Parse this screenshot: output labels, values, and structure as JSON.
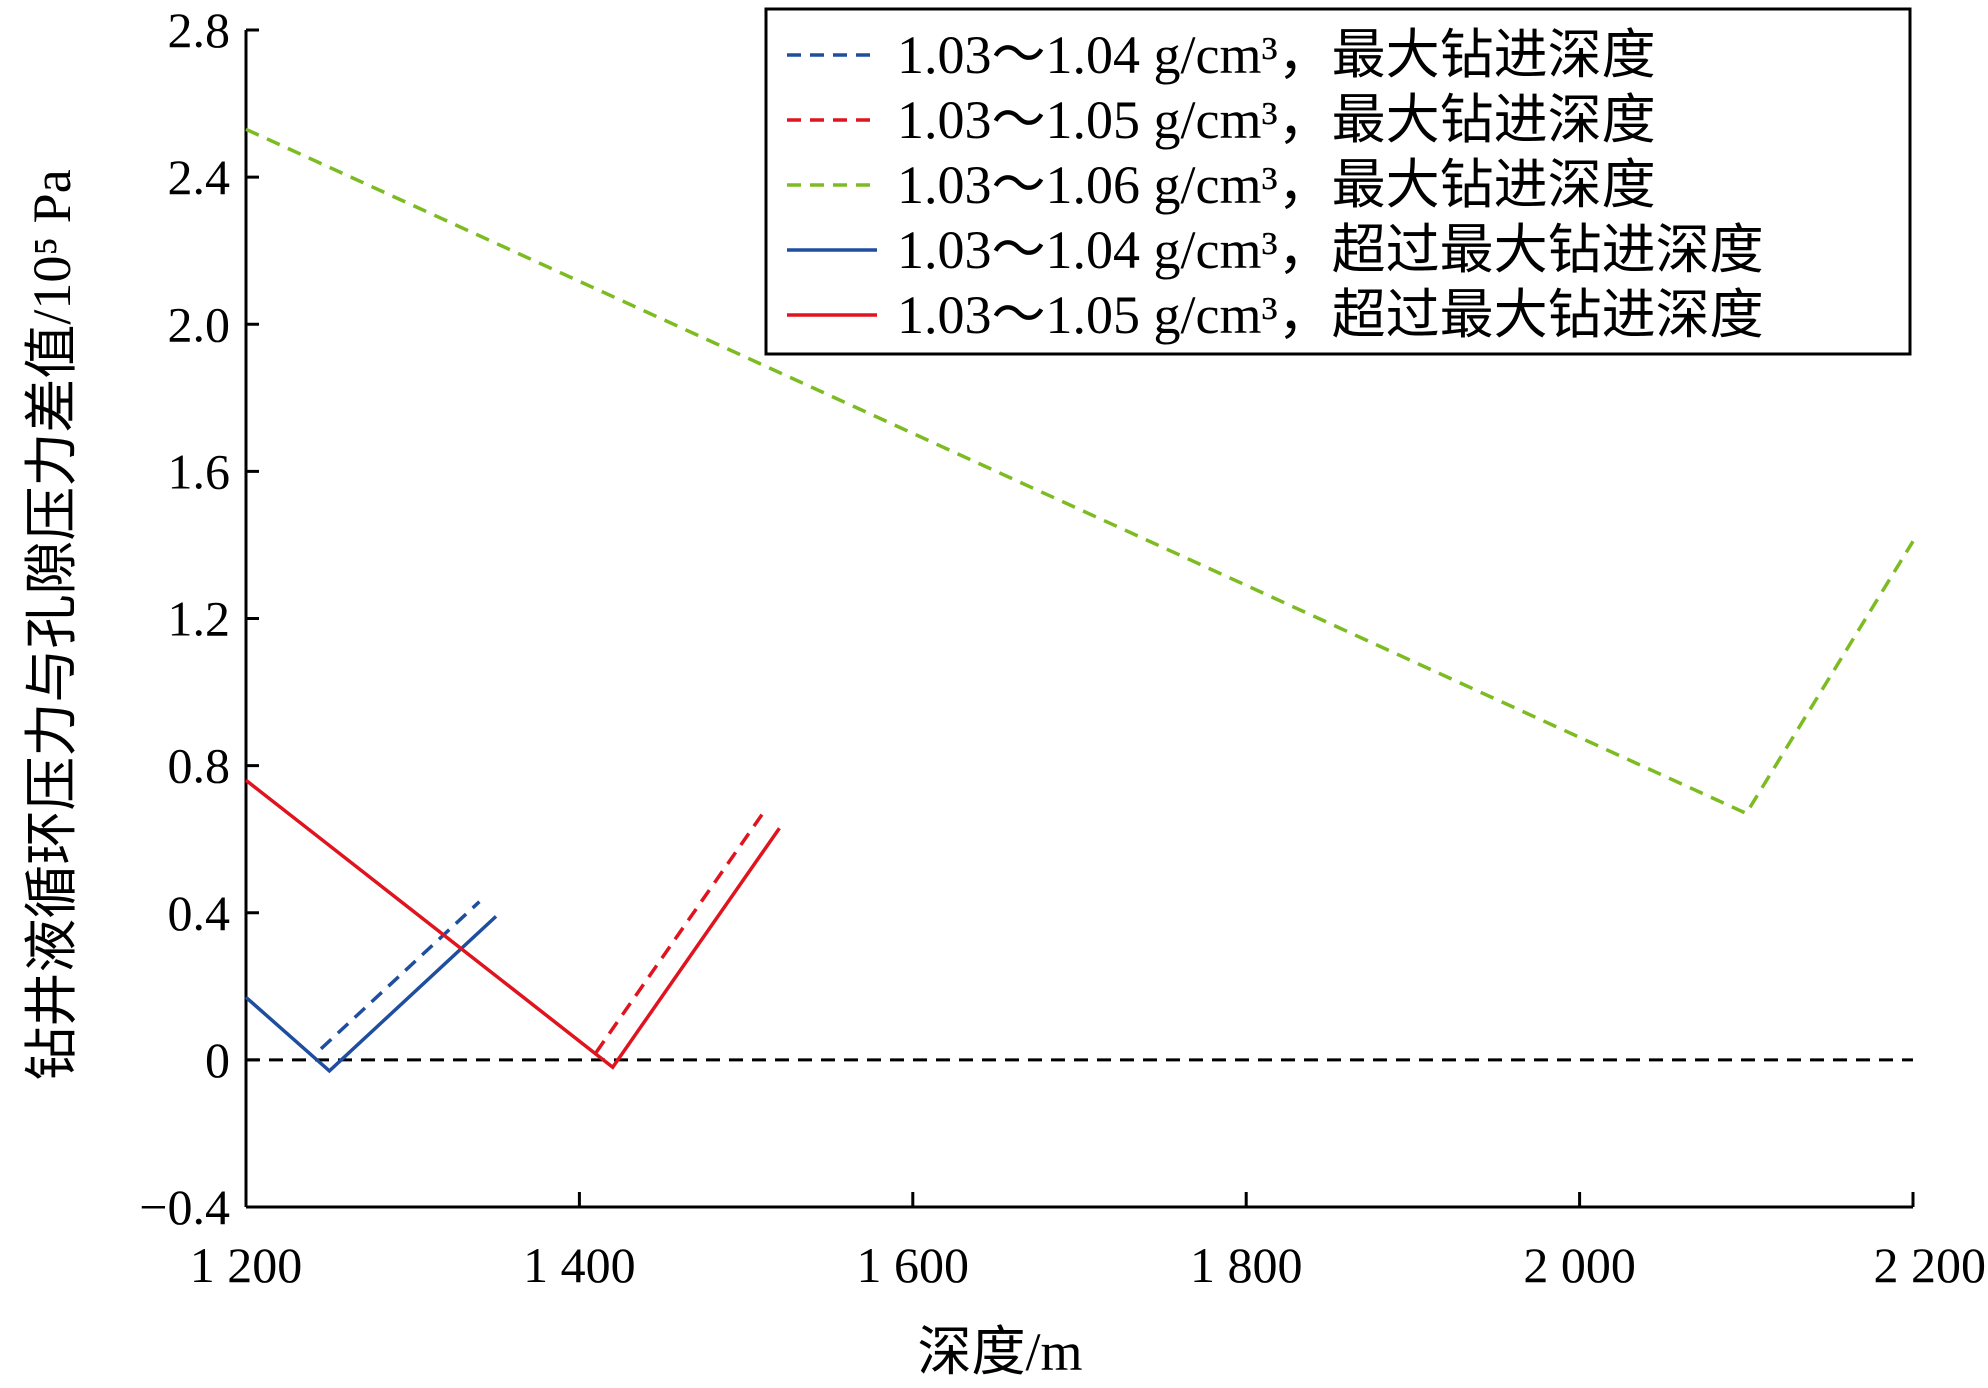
{
  "chart_data": {
    "type": "line",
    "title": "",
    "xlabel": "深度/m",
    "ylabel": "钻井液循环压力与孔隙压力差值/10⁵ Pa",
    "xlim": [
      1200,
      2200
    ],
    "ylim": [
      -0.4,
      2.8
    ],
    "x_ticks": [
      1200,
      1400,
      1600,
      1800,
      2000,
      2200
    ],
    "x_tick_labels": [
      "1 200",
      "1 400",
      "1 600",
      "1 800",
      "2 000",
      "2 200"
    ],
    "y_ticks": [
      -0.4,
      0,
      0.4,
      0.8,
      1.2,
      1.6,
      2.0,
      2.4,
      2.8
    ],
    "y_tick_labels": [
      "−0.4",
      "0",
      "0.4",
      "0.8",
      "1.2",
      "1.6",
      "2.0",
      "2.4",
      "2.8"
    ],
    "grid": false,
    "legend_position": "top-right",
    "series": [
      {
        "name": "1.03～1.04 g/cm³，最大钻进深度",
        "color": "#1f4e9f",
        "dash": true,
        "x": [
          1245,
          1340
        ],
        "y": [
          0.03,
          0.43
        ]
      },
      {
        "name": "1.03～1.05 g/cm³，最大钻进深度",
        "color": "#e0141e",
        "dash": true,
        "x": [
          1410,
          1510
        ],
        "y": [
          0.02,
          0.67
        ]
      },
      {
        "name": "1.03～1.06 g/cm³，最大钻进深度",
        "color": "#7dbb22",
        "dash": true,
        "x": [
          1200,
          2100,
          2200
        ],
        "y": [
          2.53,
          0.67,
          1.41
        ]
      },
      {
        "name": "1.03～1.04 g/cm³，超过最大钻进深度",
        "color": "#1f4e9f",
        "dash": false,
        "x": [
          1200,
          1250,
          1350
        ],
        "y": [
          0.17,
          -0.03,
          0.39
        ]
      },
      {
        "name": "1.03～1.05 g/cm³，超过最大钻进深度",
        "color": "#e0141e",
        "dash": false,
        "x": [
          1200,
          1420,
          1520
        ],
        "y": [
          0.76,
          -0.02,
          0.63
        ]
      }
    ],
    "reference_line": {
      "y": 0,
      "color": "#000000",
      "dash": true
    }
  }
}
